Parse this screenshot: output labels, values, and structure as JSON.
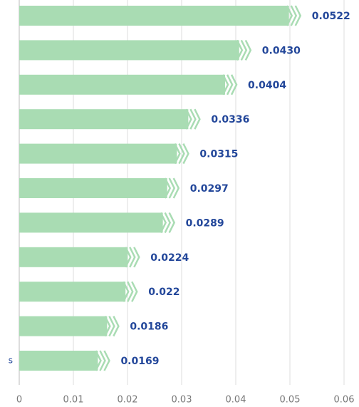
{
  "chart_data": {
    "type": "bar",
    "orientation": "horizontal",
    "categories": [
      null,
      null,
      null,
      null,
      null,
      null,
      null,
      null,
      null,
      null,
      "s"
    ],
    "values": [
      0.0522,
      0.043,
      0.0404,
      0.0336,
      0.0315,
      0.0297,
      0.0289,
      0.0224,
      0.022,
      0.0186,
      0.0169
    ],
    "value_labels": [
      "0.0522",
      "0.0430",
      "0.0404",
      "0.0336",
      "0.0315",
      "0.0297",
      "0.0289",
      "0.0224",
      "0.022",
      "0.0186",
      "0.0169"
    ],
    "color": "#a9dcb3",
    "xlim": [
      0,
      0.06
    ],
    "xticks": [
      0,
      0.01,
      0.02,
      0.03,
      0.04,
      0.05,
      0.06
    ],
    "grid": true
  }
}
